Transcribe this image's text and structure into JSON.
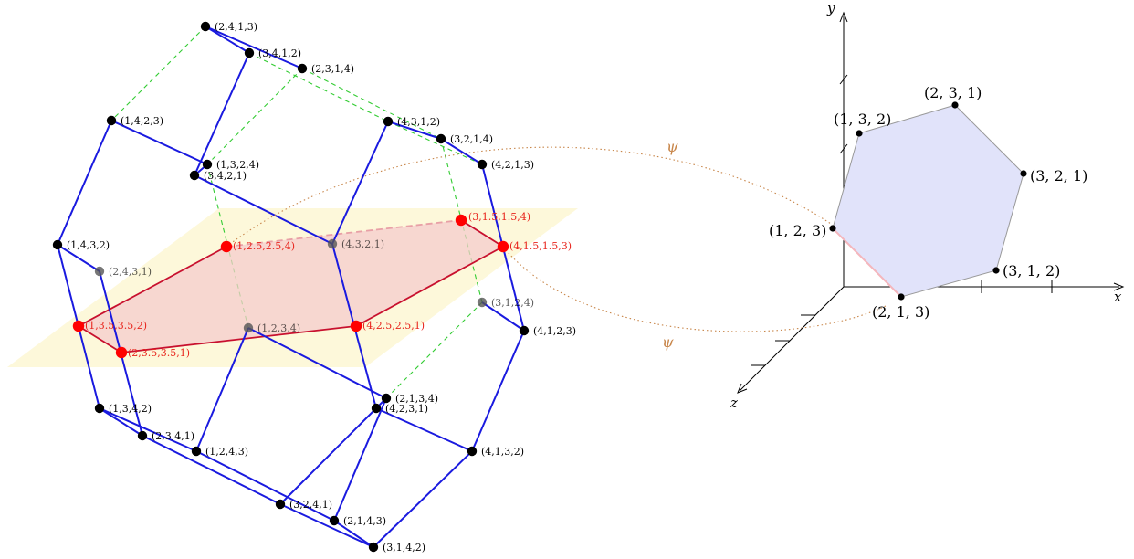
{
  "colors": {
    "edge_blue": "#1a1adf",
    "edge_green_dashed": "#33cc33",
    "section_red": "#c8102e",
    "vertex_red": "#ff0000",
    "plane_yellow": "#fdf8d8",
    "section_fill": "#f4cccc",
    "hexagon_fill": "#e1e3fa",
    "psi_color": "#c8864a"
  },
  "left_diagram": {
    "vertices": [
      {
        "id": "2413",
        "label": "(2,4,1,3)",
        "hidden": false
      },
      {
        "id": "3412",
        "label": "(3,4,1,2)",
        "hidden": false
      },
      {
        "id": "2314",
        "label": "(2,3,1,4)",
        "hidden": false
      },
      {
        "id": "1423",
        "label": "(1,4,2,3)",
        "hidden": false
      },
      {
        "id": "4312",
        "label": "(4,3,1,2)",
        "hidden": false
      },
      {
        "id": "3214",
        "label": "(3,2,1,4)",
        "hidden": false
      },
      {
        "id": "1324",
        "label": "(1,3,2,4)",
        "hidden": false
      },
      {
        "id": "3421",
        "label": "(3,4,2,1)",
        "hidden": false
      },
      {
        "id": "4213",
        "label": "(4,2,1,3)",
        "hidden": false
      },
      {
        "id": "1432",
        "label": "(1,4,3,2)",
        "hidden": false
      },
      {
        "id": "4321",
        "label": "(4,3,2,1)",
        "hidden": true
      },
      {
        "id": "2431",
        "label": "(2,4,3,1)",
        "hidden": true
      },
      {
        "id": "3124",
        "label": "(3,1,2,4)",
        "hidden": true
      },
      {
        "id": "1234",
        "label": "(1,2,3,4)",
        "hidden": true
      },
      {
        "id": "4123",
        "label": "(4,1,2,3)",
        "hidden": false
      },
      {
        "id": "1342",
        "label": "(1,3,4,2)",
        "hidden": false
      },
      {
        "id": "2134",
        "label": "(2,1,3,4)",
        "hidden": false
      },
      {
        "id": "4231",
        "label": "(4,2,3,1)",
        "hidden": false
      },
      {
        "id": "2341",
        "label": "(2,3,4,1)",
        "hidden": false
      },
      {
        "id": "1243",
        "label": "(1,2,4,3)",
        "hidden": false
      },
      {
        "id": "4132",
        "label": "(4,1,3,2)",
        "hidden": false
      },
      {
        "id": "3241",
        "label": "(3,2,4,1)",
        "hidden": false
      },
      {
        "id": "2143",
        "label": "(2,1,4,3)",
        "hidden": false
      },
      {
        "id": "3142",
        "label": "(3,1,4,2)",
        "hidden": false
      }
    ],
    "section_vertices": [
      {
        "id": "s1",
        "label": "(3,1.5,1.5,4)"
      },
      {
        "id": "s2",
        "label": "(4,1.5,1.5,3)"
      },
      {
        "id": "s3",
        "label": "(1,2.5,2.5,4)"
      },
      {
        "id": "s4",
        "label": "(1,3.5,3.5,2)"
      },
      {
        "id": "s5",
        "label": "(2,3.5,3.5,1)"
      },
      {
        "id": "s6",
        "label": "(4,2.5,2.5,1)"
      }
    ],
    "blue_edges": [
      [
        "1423",
        "1432"
      ],
      [
        "1423",
        "1324"
      ],
      [
        "1432",
        "1342"
      ],
      [
        "1432",
        "2431"
      ],
      [
        "3412",
        "3421"
      ],
      [
        "3412",
        "2413"
      ],
      [
        "3421",
        "1324"
      ],
      [
        "3421",
        "4321"
      ],
      [
        "4312",
        "4321"
      ],
      [
        "4312",
        "3214"
      ],
      [
        "4321",
        "4231"
      ],
      [
        "2431",
        "2341"
      ],
      [
        "1342",
        "2341"
      ],
      [
        "1342",
        "1243"
      ],
      [
        "1234",
        "1243"
      ],
      [
        "1234",
        "2134"
      ],
      [
        "2341",
        "3241"
      ],
      [
        "1243",
        "2143"
      ],
      [
        "4231",
        "3241"
      ],
      [
        "4231",
        "4132"
      ],
      [
        "4231",
        "2134"
      ],
      [
        "4132",
        "3142"
      ],
      [
        "4132",
        "4123"
      ],
      [
        "4123",
        "3124"
      ],
      [
        "3241",
        "3142"
      ],
      [
        "2143",
        "3142"
      ],
      [
        "2134",
        "2143"
      ],
      [
        "3214",
        "4213"
      ],
      [
        "4213",
        "4123"
      ],
      [
        "2413",
        "2314"
      ]
    ],
    "green_dashed_edges": [
      [
        "2413",
        "1423"
      ],
      [
        "2413",
        "2314"
      ],
      [
        "2314",
        "3214"
      ],
      [
        "2314",
        "1324"
      ],
      [
        "3412",
        "4312"
      ],
      [
        "1423",
        "1324"
      ],
      [
        "1324",
        "1234"
      ],
      [
        "3214",
        "3124"
      ],
      [
        "4213",
        "4123"
      ],
      [
        "1234",
        "2134"
      ],
      [
        "2134",
        "3124"
      ],
      [
        "4312",
        "4213"
      ]
    ]
  },
  "right_diagram": {
    "axes": {
      "x": "x",
      "y": "y",
      "z": "z"
    },
    "hexagon_points": [
      {
        "id": "h231",
        "label": "(2, 3, 1)"
      },
      {
        "id": "h132",
        "label": "(1, 3, 2)"
      },
      {
        "id": "h321",
        "label": "(3, 2, 1)"
      },
      {
        "id": "h123",
        "label": "(1, 2, 3)"
      },
      {
        "id": "h312",
        "label": "(3, 1, 2)"
      },
      {
        "id": "h213",
        "label": "(2, 1, 3)"
      }
    ]
  },
  "map_labels": {
    "psi_top": "ψ",
    "psi_bottom": "ψ"
  }
}
